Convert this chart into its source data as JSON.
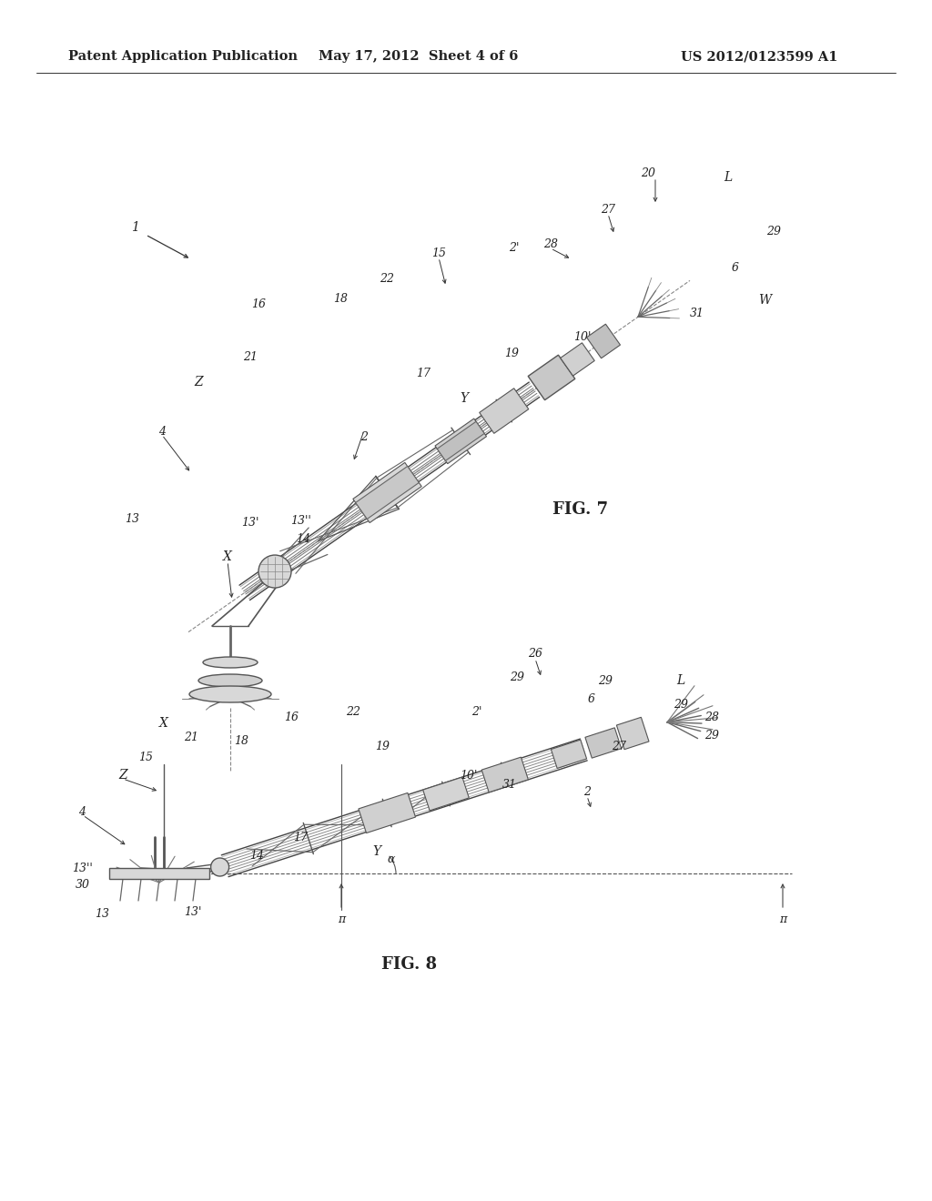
{
  "background_color": "#ffffff",
  "header_left": "Patent Application Publication",
  "header_center": "May 17, 2012  Sheet 4 of 6",
  "header_right": "US 2012/0123599 A1",
  "fig7_label": "FIG. 7",
  "fig8_label": "FIG. 8",
  "lc": "#555555",
  "dc": "#777777",
  "afs": 9
}
